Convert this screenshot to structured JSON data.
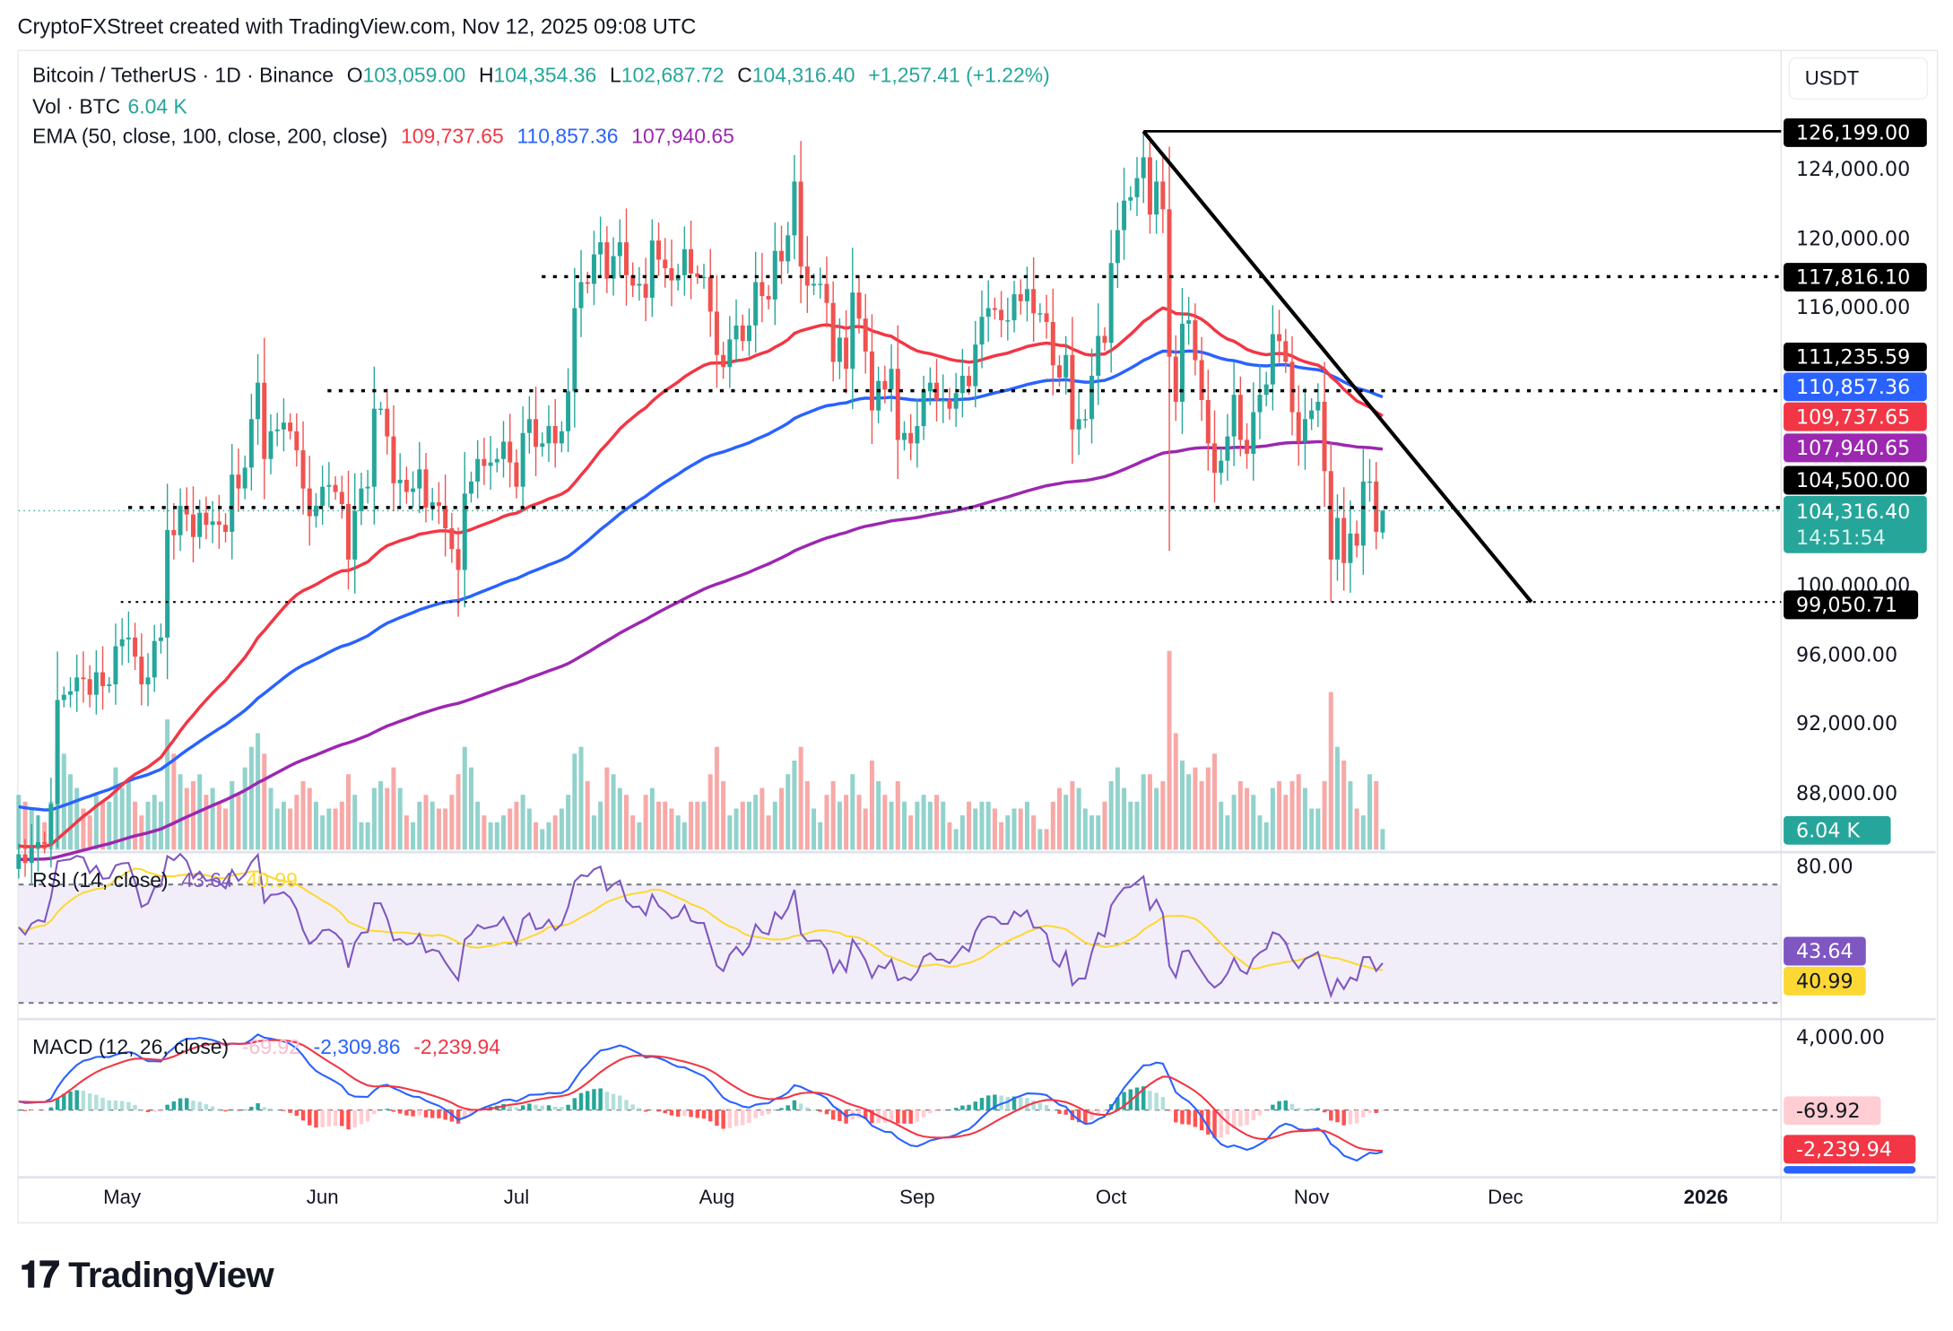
{
  "header": {
    "credit": "CryptoFXStreet created with TradingView.com, Nov 12, 2025 09:08 UTC"
  },
  "legend": {
    "symbol": "Bitcoin / TetherUS · 1D · Binance",
    "open_label": "O",
    "open": "103,059.00",
    "high_label": "H",
    "high": "104,354.36",
    "low_label": "L",
    "low": "102,687.72",
    "close_label": "C",
    "close": "104,316.40",
    "change": "+1,257.41 (+1.22%)",
    "vol_label": "Vol · BTC",
    "vol": "6.04 K",
    "ema_label": "EMA (50, close, 100, close, 200, close)",
    "ema50": "109,737.65",
    "ema100": "110,857.36",
    "ema200": "107,940.65",
    "rsi_label": "RSI (14, close)",
    "rsi": "43.64",
    "rsi_ma": "40.99",
    "macd_label": "MACD (12, 26, close)",
    "macd_hist": "-69.92",
    "macd": "-2,309.86",
    "macd_signal": "-2,239.94"
  },
  "price_axis": {
    "currency": "USDT",
    "ticks": [
      "124,000.00",
      "120,000.00",
      "116,000.00",
      "100,000.00",
      "96,000.00",
      "92,000.00",
      "88,000.00"
    ],
    "tags": [
      {
        "text": "126,199.00",
        "color": "#000000"
      },
      {
        "text": "117,816.10",
        "color": "#000000"
      },
      {
        "text": "111,235.59",
        "color": "#000000"
      },
      {
        "text": "110,857.36",
        "color": "#2962ff"
      },
      {
        "text": "109,737.65",
        "color": "#f23645"
      },
      {
        "text": "107,940.65",
        "color": "#9c27b0"
      },
      {
        "text": "104,500.00",
        "color": "#000000"
      },
      {
        "text": "99,050.71",
        "color": "#000000"
      }
    ],
    "last_price": "104,316.40",
    "countdown": "14:51:54",
    "vol_tag": "6.04 K"
  },
  "rsi_axis": {
    "tick": "80.00",
    "rsi_tag": "43.64",
    "ma_tag": "40.99"
  },
  "macd_axis": {
    "tick": "4,000.00",
    "hist_tag": "-69.92",
    "signal_tag": "-2,239.94"
  },
  "time_axis": [
    "May",
    "Jun",
    "Jul",
    "Aug",
    "Sep",
    "Oct",
    "Nov",
    "Dec",
    "2026"
  ],
  "brand": "TradingView",
  "colors": {
    "up": "#26a69a",
    "down": "#ef5350",
    "ema50": "#f23645",
    "ema100": "#2962ff",
    "ema200": "#9c27b0",
    "rsi": "#7e57c2",
    "rsi_ma": "#fdd835",
    "macd": "#2962ff",
    "signal": "#f23645"
  },
  "chart_data": {
    "type": "candlestick",
    "interval": "1D",
    "start_date": "2025-04-15",
    "end_date": "2025-11-12",
    "price_range": [
      85000,
      127000
    ],
    "close_thousands": [
      84.5,
      84.0,
      84.9,
      85.2,
      85.1,
      87.4,
      93.4,
      93.7,
      93.9,
      94.7,
      94.6,
      93.7,
      95.0,
      94.2,
      94.3,
      96.5,
      96.9,
      97.0,
      95.9,
      94.3,
      94.7,
      96.8,
      97.0,
      103.2,
      102.9,
      104.6,
      104.1,
      102.8,
      104.2,
      103.5,
      103.7,
      103.5,
      103.1,
      106.4,
      105.6,
      106.8,
      109.6,
      111.7,
      107.3,
      108.9,
      109.0,
      109.4,
      108.9,
      107.8,
      105.6,
      104.0,
      104.6,
      105.7,
      105.8,
      105.4,
      104.7,
      101.5,
      104.3,
      105.6,
      105.7,
      110.2,
      110.2,
      108.6,
      105.9,
      106.1,
      105.4,
      105.6,
      106.7,
      104.5,
      104.8,
      104.6,
      103.3,
      102.1,
      100.9,
      105.3,
      106.0,
      107.3,
      106.9,
      107.1,
      107.3,
      108.3,
      107.1,
      105.7,
      108.8,
      109.6,
      108.0,
      108.2,
      109.2,
      108.2,
      108.9,
      111.2,
      116.0,
      117.5,
      117.4,
      119.1,
      119.8,
      117.7,
      119.0,
      119.8,
      117.9,
      117.3,
      117.4,
      116.6,
      119.9,
      118.8,
      118.3,
      117.6,
      117.9,
      119.4,
      118.0,
      117.8,
      117.8,
      115.8,
      113.3,
      112.6,
      114.2,
      115.0,
      114.1,
      115.0,
      117.5,
      116.7,
      116.5,
      119.3,
      118.7,
      120.2,
      123.3,
      118.4,
      117.3,
      117.4,
      117.4,
      116.3,
      112.9,
      114.3,
      112.5,
      116.9,
      115.4,
      113.5,
      110.1,
      111.8,
      111.3,
      112.5,
      108.4,
      108.8,
      108.2,
      109.2,
      111.2,
      111.7,
      110.7,
      110.7,
      110.2,
      111.1,
      112.1,
      111.5,
      113.9,
      115.5,
      116.0,
      115.9,
      115.3,
      115.3,
      116.8,
      116.4,
      117.1,
      115.7,
      115.7,
      115.2,
      112.7,
      112.0,
      113.3,
      109.0,
      109.6,
      109.6,
      112.1,
      114.4,
      114.0,
      118.6,
      120.5,
      122.2,
      122.4,
      123.5,
      124.7,
      121.4,
      123.3,
      121.7,
      113.2,
      110.6,
      115.1,
      115.3,
      113.0,
      110.7,
      108.2,
      106.5,
      107.2,
      108.6,
      111.0,
      108.4,
      107.6,
      110.0,
      111.0,
      111.6,
      114.5,
      114.1,
      112.9,
      110.0,
      108.3,
      109.6,
      110.1,
      110.6,
      106.6,
      101.5,
      103.9,
      101.3,
      103.0,
      102.3,
      106.0,
      106.0,
      103.1,
      104.316
    ],
    "volume_k": [
      16,
      14,
      12,
      10,
      8,
      14,
      30,
      28,
      22,
      18,
      12,
      10,
      16,
      14,
      14,
      24,
      18,
      20,
      14,
      10,
      14,
      16,
      14,
      38,
      28,
      22,
      18,
      20,
      22,
      16,
      18,
      14,
      12,
      20,
      16,
      24,
      30,
      34,
      28,
      18,
      12,
      14,
      12,
      16,
      20,
      18,
      14,
      10,
      12,
      12,
      14,
      22,
      16,
      8,
      8,
      18,
      20,
      18,
      24,
      18,
      10,
      8,
      14,
      16,
      14,
      12,
      12,
      16,
      22,
      30,
      24,
      14,
      10,
      8,
      8,
      10,
      12,
      14,
      16,
      12,
      8,
      6,
      8,
      10,
      12,
      16,
      28,
      30,
      20,
      10,
      14,
      24,
      22,
      18,
      16,
      10,
      8,
      16,
      18,
      14,
      14,
      12,
      10,
      8,
      14,
      14,
      14,
      22,
      30,
      20,
      10,
      12,
      14,
      14,
      16,
      18,
      10,
      14,
      18,
      22,
      26,
      30,
      20,
      12,
      8,
      16,
      20,
      14,
      16,
      22,
      16,
      12,
      26,
      20,
      16,
      14,
      20,
      14,
      10,
      14,
      16,
      14,
      16,
      14,
      8,
      6,
      10,
      14,
      12,
      14,
      14,
      12,
      8,
      10,
      12,
      12,
      14,
      10,
      6,
      6,
      14,
      18,
      16,
      20,
      18,
      12,
      10,
      10,
      14,
      20,
      24,
      18,
      14,
      14,
      22,
      22,
      18,
      20,
      58,
      34,
      26,
      22,
      24,
      20,
      24,
      28,
      14,
      10,
      16,
      20,
      18,
      16,
      10,
      8,
      18,
      20,
      16,
      20,
      22,
      18,
      12,
      12,
      20,
      46,
      30,
      26,
      20,
      12,
      10,
      22,
      20,
      6.04
    ],
    "extremes": [
      {
        "date": "2025-10-06",
        "high": 126199
      },
      {
        "date": "2025-10-10",
        "low": 102000
      },
      {
        "date": "2025-06-22",
        "low": 98200
      },
      {
        "date": "2025-11-04",
        "low": 99050.71
      }
    ],
    "horizontal_levels": [
      126199.0,
      117816.1,
      111235.59,
      104500.0,
      99050.71
    ],
    "trendline": {
      "from": {
        "date": "2025-10-06",
        "price": 126199
      },
      "to": {
        "date": "2025-12-05",
        "price": 99050.71
      }
    },
    "rsi_bands": [
      70,
      50,
      30
    ],
    "rsi_range": [
      20,
      80
    ]
  }
}
